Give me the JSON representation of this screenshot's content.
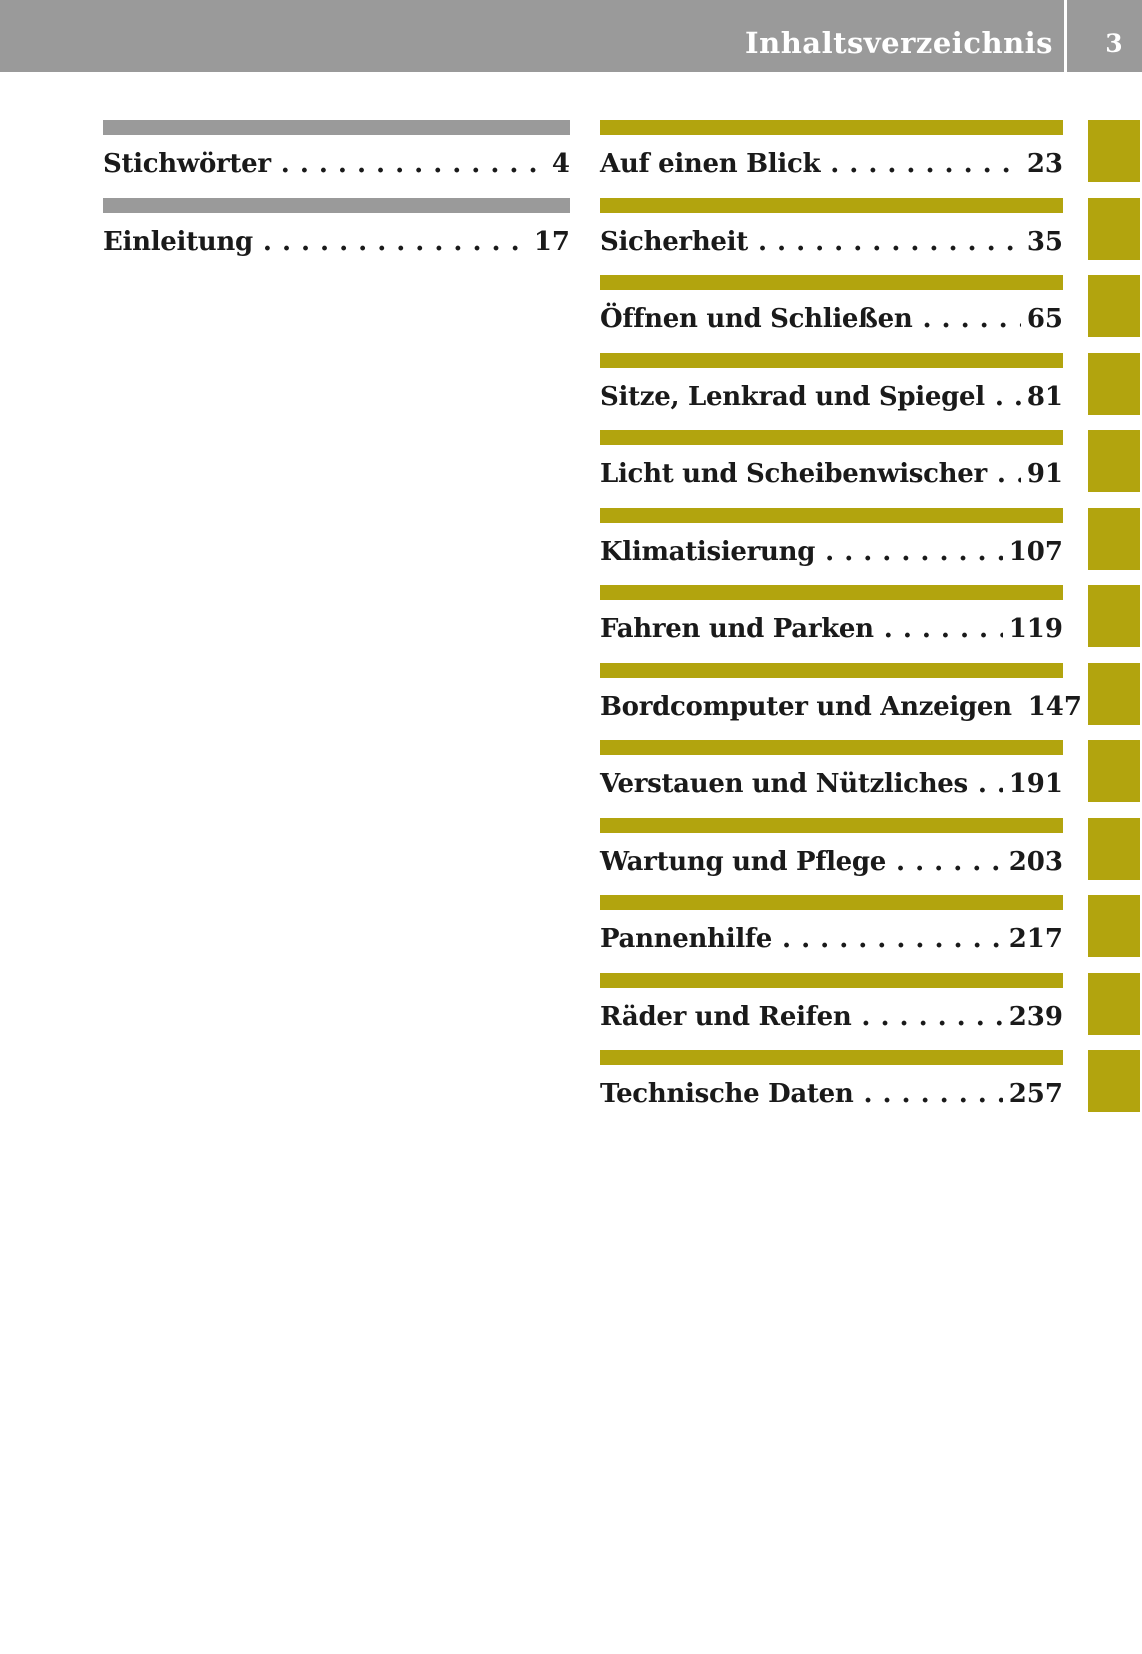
{
  "header": {
    "title": "Inhaltsverzeichnis",
    "page_number": "3"
  },
  "index_entries": [
    {
      "label": "Stichwörter",
      "page": "4"
    },
    {
      "label": "Einleitung",
      "page": "17"
    }
  ],
  "chapters": [
    {
      "label": "Auf einen Blick",
      "page": "23"
    },
    {
      "label": "Sicherheit",
      "page": "35"
    },
    {
      "label": "Öffnen und Schließen",
      "page": "65"
    },
    {
      "label": "Sitze, Lenkrad und Spiegel",
      "page": "81"
    },
    {
      "label": "Licht und Scheibenwischer",
      "page": "91"
    },
    {
      "label": "Klimatisierung",
      "page": "107"
    },
    {
      "label": "Fahren und Parken",
      "page": "119"
    },
    {
      "label": "Bordcomputer und Anzeigen",
      "page": "147"
    },
    {
      "label": "Verstauen und Nützliches",
      "page": "191"
    },
    {
      "label": "Wartung und Pflege",
      "page": "203"
    },
    {
      "label": "Pannenhilfe",
      "page": "217"
    },
    {
      "label": "Räder und Reifen",
      "page": "239"
    },
    {
      "label": "Technische Daten",
      "page": "257"
    }
  ],
  "colors": {
    "header_bar": "#9a9a9a",
    "index_bar": "#9a9a9a",
    "chapter_bar": "#b2a40e",
    "tab": "#b2a40e",
    "text": "#1a1a1a",
    "header_text": "#ffffff"
  },
  "leader_char": "."
}
